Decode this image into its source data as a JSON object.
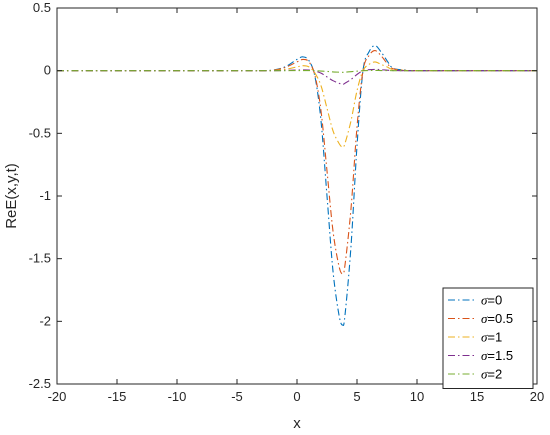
{
  "chart_data": {
    "type": "line",
    "xlabel": "x",
    "ylabel": "ReE(x,y,t)",
    "xlim": [
      -20,
      20
    ],
    "ylim": [
      -2.5,
      0.5
    ],
    "xticks": [
      -20,
      -15,
      -10,
      -5,
      0,
      5,
      10,
      15,
      20
    ],
    "yticks": [
      0.5,
      0,
      -0.5,
      -1,
      -1.5,
      -2,
      -2.5
    ],
    "xtick_labels": [
      "-20",
      "-15",
      "-10",
      "-5",
      "0",
      "5",
      "10",
      "15",
      "20"
    ],
    "ytick_labels": [
      "0.5",
      "0",
      "-0.5",
      "-1",
      "-1.5",
      "-2",
      "-2.5"
    ],
    "grid": false,
    "legend_position": "bottom-right",
    "line_style": "dash-dot",
    "series": [
      {
        "name": "σ=0",
        "legend_symbol": "σ",
        "legend_value": "=0",
        "color": "#0072BD",
        "x": [
          -20,
          -5,
          -3,
          -2,
          -1,
          0,
          0.5,
          1,
          1.5,
          2,
          2.5,
          3,
          3.5,
          3.8,
          4,
          4.5,
          5,
          5.5,
          6,
          6.5,
          7,
          7.5,
          8,
          9,
          10,
          20
        ],
        "y": [
          0,
          0,
          0,
          0.005,
          0.03,
          0.09,
          0.11,
          0.08,
          -0.05,
          -0.4,
          -1.0,
          -1.6,
          -1.95,
          -2.03,
          -1.95,
          -1.4,
          -0.6,
          0.0,
          0.15,
          0.2,
          0.15,
          0.08,
          0.02,
          0.005,
          0,
          0
        ]
      },
      {
        "name": "σ=0.5",
        "legend_symbol": "σ",
        "legend_value": "=0.5",
        "color": "#D95319",
        "x": [
          -20,
          -5,
          -3,
          -2,
          -1,
          0,
          0.5,
          1,
          1.5,
          2,
          2.5,
          3,
          3.5,
          3.8,
          4,
          4.5,
          5,
          5.5,
          6,
          6.5,
          7,
          7.5,
          8,
          9,
          10,
          20
        ],
        "y": [
          0,
          0,
          0,
          0.004,
          0.025,
          0.07,
          0.09,
          0.07,
          -0.04,
          -0.32,
          -0.8,
          -1.28,
          -1.56,
          -1.62,
          -1.55,
          -1.1,
          -0.45,
          0.0,
          0.12,
          0.16,
          0.12,
          0.06,
          0.015,
          0.004,
          0,
          0
        ]
      },
      {
        "name": "σ=1",
        "legend_symbol": "σ",
        "legend_value": "=1",
        "color": "#EDB120",
        "x": [
          -20,
          -5,
          -3,
          -2,
          -1,
          0,
          0.5,
          1,
          1.5,
          2,
          2.5,
          3,
          3.5,
          3.8,
          4,
          4.5,
          5,
          5.5,
          6,
          6.5,
          7,
          7.5,
          8,
          9,
          10,
          20
        ],
        "y": [
          0,
          0,
          0,
          0.002,
          0.01,
          0.03,
          0.04,
          0.03,
          -0.02,
          -0.12,
          -0.3,
          -0.48,
          -0.58,
          -0.61,
          -0.58,
          -0.4,
          -0.16,
          0.0,
          0.05,
          0.07,
          0.05,
          0.03,
          0.008,
          0.002,
          0,
          0
        ]
      },
      {
        "name": "σ=1.5",
        "legend_symbol": "σ",
        "legend_value": "=1.5",
        "color": "#7E2F8E",
        "x": [
          -20,
          -5,
          -3,
          -2,
          -1,
          0,
          0.5,
          1,
          1.5,
          2,
          2.5,
          3,
          3.5,
          3.8,
          4,
          4.5,
          5,
          5.5,
          6,
          6.5,
          7,
          7.5,
          8,
          9,
          10,
          20
        ],
        "y": [
          0,
          0,
          0,
          0,
          0.002,
          0.005,
          0.006,
          0.005,
          -0.003,
          -0.02,
          -0.05,
          -0.08,
          -0.1,
          -0.11,
          -0.1,
          -0.07,
          -0.03,
          0.0,
          0.008,
          0.01,
          0.008,
          0.004,
          0.001,
          0,
          0,
          0
        ]
      },
      {
        "name": "σ=2",
        "legend_symbol": "σ",
        "legend_value": "=2",
        "color": "#77AC30",
        "x": [
          -20,
          -5,
          -3,
          -2,
          -1,
          0,
          0.5,
          1,
          1.5,
          2,
          2.5,
          3,
          3.5,
          3.8,
          4,
          4.5,
          5,
          5.5,
          6,
          6.5,
          7,
          7.5,
          8,
          9,
          10,
          20
        ],
        "y": [
          0,
          0,
          0,
          0,
          0,
          0.001,
          0.001,
          0.001,
          0,
          -0.003,
          -0.006,
          -0.01,
          -0.012,
          -0.013,
          -0.012,
          -0.008,
          -0.004,
          0.0,
          0.001,
          0.002,
          0.001,
          0.001,
          0,
          0,
          0,
          0
        ]
      }
    ]
  }
}
